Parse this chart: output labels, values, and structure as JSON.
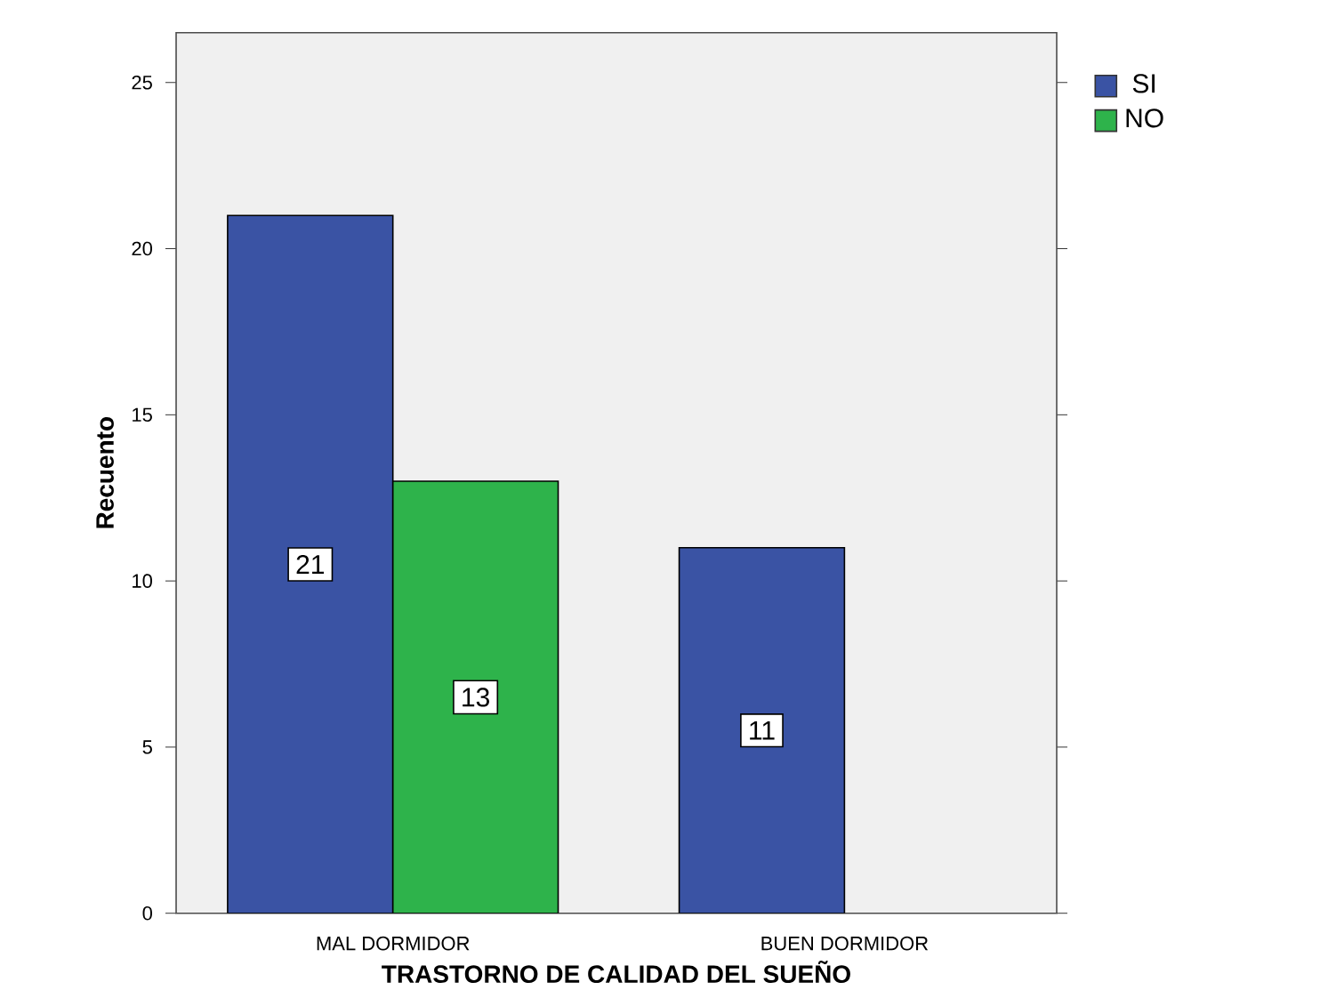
{
  "chart_data": {
    "type": "bar",
    "xlabel": "TRASTORNO DE CALIDAD DEL SUEÑO",
    "ylabel": "Recuento",
    "categories": [
      "MAL DORMIDOR",
      "BUEN DORMIDOR"
    ],
    "series": [
      {
        "name": "SI",
        "color": "#3a53a4",
        "values": [
          21,
          11
        ]
      },
      {
        "name": "NO",
        "color": "#2eb34b",
        "values": [
          13,
          null
        ]
      }
    ],
    "ylim": [
      0,
      26.5
    ],
    "yticks": [
      0,
      5,
      10,
      15,
      20,
      25
    ],
    "data_labels": true,
    "legend": "top right",
    "grid": false
  }
}
